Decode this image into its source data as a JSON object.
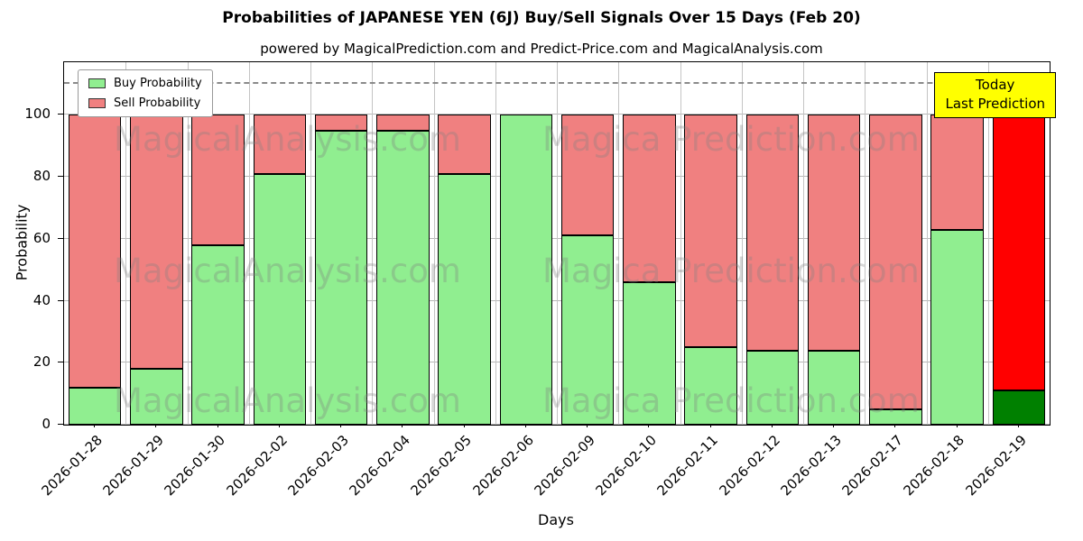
{
  "chart_data": {
    "type": "bar",
    "stacked": true,
    "title": "Probabilities of JAPANESE YEN (6J) Buy/Sell Signals Over 15 Days (Feb 20)",
    "subtitle": "powered by MagicalPrediction.com and Predict-Price.com and MagicalAnalysis.com",
    "xlabel": "Days",
    "ylabel": "Probability",
    "yticks": [
      0,
      20,
      40,
      60,
      80,
      100
    ],
    "ylim": [
      0,
      117
    ],
    "dashed_line_y": 110,
    "grid": true,
    "legend_position": "upper left",
    "categories": [
      "2026-01-28",
      "2026-01-29",
      "2026-01-30",
      "2026-02-02",
      "2026-02-03",
      "2026-02-04",
      "2026-02-05",
      "2026-02-06",
      "2026-02-09",
      "2026-02-10",
      "2026-02-11",
      "2026-02-12",
      "2026-02-13",
      "2026-02-17",
      "2026-02-18",
      "2026-02-19"
    ],
    "series": [
      {
        "name": "Buy Probability",
        "color": "#90EE90",
        "values": [
          12,
          18,
          58,
          81,
          95,
          95,
          81,
          100,
          61,
          46,
          25,
          24,
          24,
          5,
          63,
          11
        ]
      },
      {
        "name": "Sell Probability",
        "color": "#F08080",
        "values": [
          88,
          82,
          42,
          19,
          5,
          5,
          19,
          0,
          39,
          54,
          75,
          76,
          76,
          95,
          37,
          89
        ]
      }
    ],
    "highlight_last": {
      "buy_color": "#008000",
      "sell_color": "#FF0000"
    },
    "annotation": {
      "lines": [
        "Today",
        "Last Prediction"
      ],
      "bg": "#FFFF00"
    },
    "watermarks": {
      "left": "MagicalAnalysis.com",
      "right": "Magica Prediction.com"
    }
  }
}
